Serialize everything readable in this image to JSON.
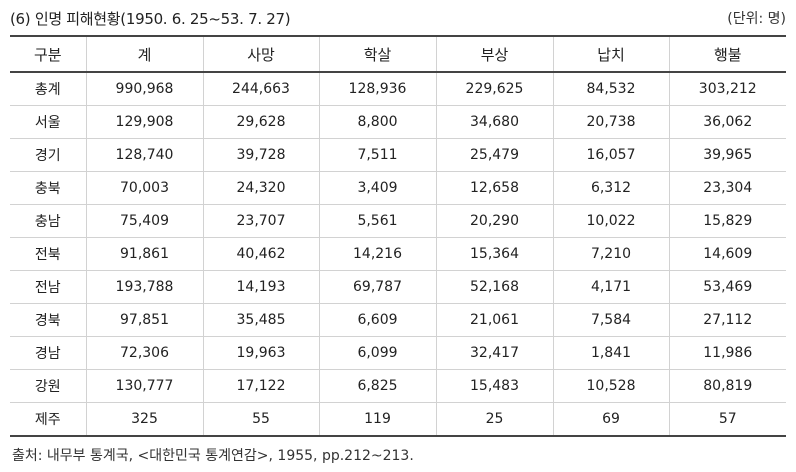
{
  "caption": {
    "title": "(6) 인명 피해현황(1950. 6. 25~53. 7. 27)",
    "unit": "(단위: 명)"
  },
  "table": {
    "headers": [
      "구분",
      "계",
      "사망",
      "학살",
      "부상",
      "납치",
      "행불"
    ],
    "rows": [
      [
        "총계",
        "990,968",
        "244,663",
        "128,936",
        "229,625",
        "84,532",
        "303,212"
      ],
      [
        "서울",
        "129,908",
        "29,628",
        "8,800",
        "34,680",
        "20,738",
        "36,062"
      ],
      [
        "경기",
        "128,740",
        "39,728",
        "7,511",
        "25,479",
        "16,057",
        "39,965"
      ],
      [
        "충북",
        "70,003",
        "24,320",
        "3,409",
        "12,658",
        "6,312",
        "23,304"
      ],
      [
        "충남",
        "75,409",
        "23,707",
        "5,561",
        "20,290",
        "10,022",
        "15,829"
      ],
      [
        "전북",
        "91,861",
        "40,462",
        "14,216",
        "15,364",
        "7,210",
        "14,609"
      ],
      [
        "전남",
        "193,788",
        "14,193",
        "69,787",
        "52,168",
        "4,171",
        "53,469"
      ],
      [
        "경북",
        "97,851",
        "35,485",
        "6,609",
        "21,061",
        "7,584",
        "27,112"
      ],
      [
        "경남",
        "72,306",
        "19,963",
        "6,099",
        "32,417",
        "1,841",
        "11,986"
      ],
      [
        "강원",
        "130,777",
        "17,122",
        "6,825",
        "15,483",
        "10,528",
        "80,819"
      ],
      [
        "제주",
        "325",
        "55",
        "119",
        "25",
        "69",
        "57"
      ]
    ]
  },
  "source": "출처: 내무부 통계국, <대한민국 통계연감>, 1955, pp.212~213."
}
